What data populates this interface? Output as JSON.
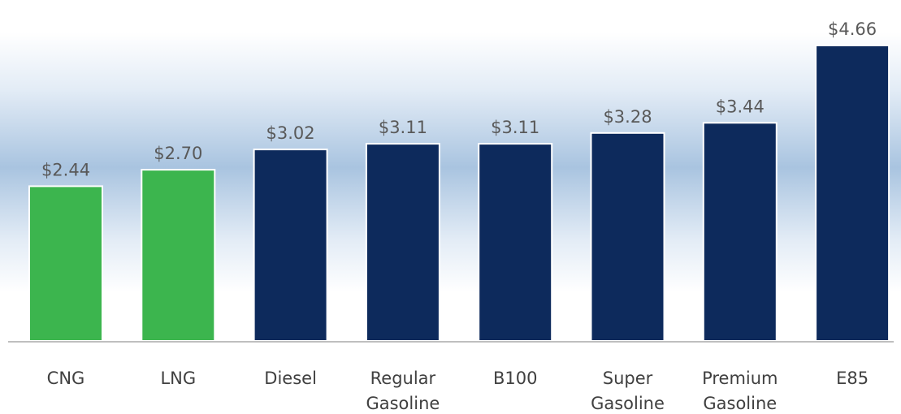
{
  "chart_data": {
    "type": "bar",
    "categories": [
      [
        "CNG"
      ],
      [
        "LNG"
      ],
      [
        "Diesel"
      ],
      [
        "Regular",
        "Gasoline"
      ],
      [
        "B100"
      ],
      [
        "Super",
        "Gasoline"
      ],
      [
        "Premium",
        "Gasoline"
      ],
      [
        "E85"
      ]
    ],
    "values": [
      2.44,
      2.7,
      3.02,
      3.11,
      3.11,
      3.28,
      3.44,
      4.66
    ],
    "value_labels": [
      "$2.44",
      "$2.70",
      "$3.02",
      "$3.11",
      "$3.11",
      "$3.28",
      "$3.44",
      "$4.66"
    ],
    "bar_colors": [
      "#3cb54e",
      "#3cb54e",
      "#0d2a5c",
      "#0d2a5c",
      "#0d2a5c",
      "#0d2a5c",
      "#0d2a5c",
      "#0d2a5c"
    ],
    "title": "",
    "xlabel": "",
    "ylabel": "",
    "ylim": [
      0,
      4.66
    ],
    "grid": false,
    "background_band_color": "#a9c4e0"
  }
}
